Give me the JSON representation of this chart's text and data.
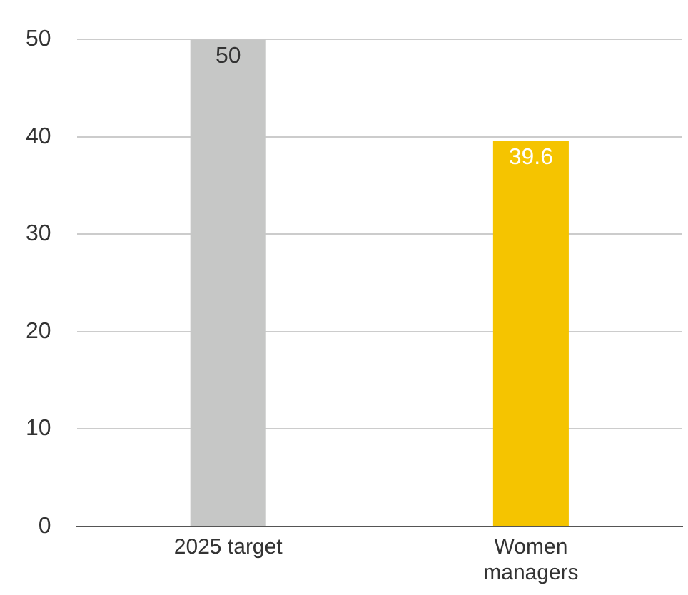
{
  "chart_data": {
    "type": "bar",
    "categories": [
      "2025 target",
      "Women managers"
    ],
    "values": [
      50,
      39.6
    ],
    "colors": [
      "#c6c7c6",
      "#f5c400"
    ],
    "ylim": [
      0,
      50
    ],
    "yticks": [
      0,
      10,
      20,
      30,
      40,
      50
    ],
    "grid": "y",
    "legend": false,
    "data_labels": true
  }
}
